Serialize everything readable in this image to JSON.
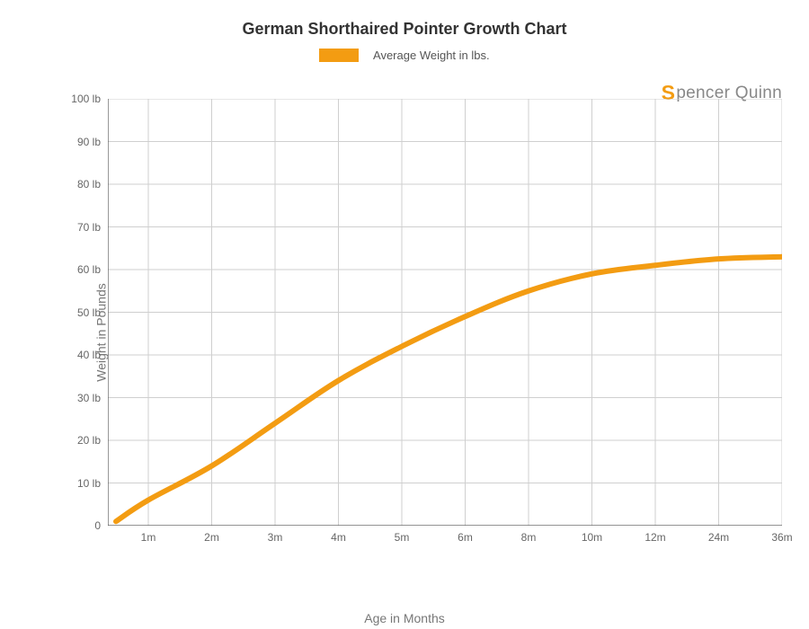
{
  "chart": {
    "type": "line",
    "title": "German Shorthaired Pointer Growth Chart",
    "title_fontsize": 18,
    "title_color": "#333333",
    "background_color": "#ffffff",
    "grid_color": "#cfcfcf",
    "axis_color": "#555555",
    "legend": {
      "label": "Average Weight in lbs.",
      "swatch_color": "#f39c12",
      "fontsize": 13,
      "text_color": "#555555"
    },
    "watermark": {
      "text_prefix": "S",
      "text_rest": "pencer Quinn",
      "prefix_color": "#f39c12",
      "rest_color": "#888888",
      "fontsize": 19
    },
    "y_axis": {
      "title": "Weight in Pounds",
      "title_fontsize": 14,
      "title_color": "#777777",
      "min": 0,
      "max": 100,
      "ticks": [
        0,
        10,
        20,
        30,
        40,
        50,
        60,
        70,
        80,
        90,
        100
      ],
      "tick_labels": [
        "0",
        "10 lb",
        "20 lb",
        "30 lb",
        "40 lb",
        "50 lb",
        "60 lb",
        "70 lb",
        "80 lb",
        "90 lb",
        "100 lb"
      ],
      "tick_fontsize": 12,
      "tick_color": "#666666"
    },
    "x_axis": {
      "title": "Age in Months",
      "title_fontsize": 14,
      "title_color": "#777777",
      "categories": [
        "1m",
        "2m",
        "3m",
        "4m",
        "5m",
        "6m",
        "8m",
        "10m",
        "12m",
        "24m",
        "36m"
      ],
      "tick_fontsize": 12,
      "tick_color": "#666666",
      "left_pad_fraction": 0.06
    },
    "series": {
      "name": "Average Weight in lbs.",
      "color": "#f39c12",
      "line_width": 6,
      "values": [
        1,
        6,
        14,
        24,
        34,
        42,
        49,
        55,
        59,
        61,
        62.5,
        63
      ],
      "smooth": true
    }
  }
}
